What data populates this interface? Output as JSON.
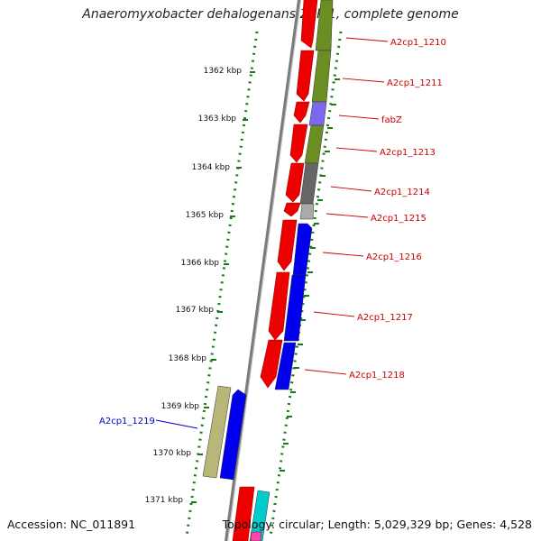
{
  "title": "Anaeromyxobacter dehalogenans 2CP-1, complete genome",
  "accession": "Accession: NC_011891",
  "topology": "Topology: circular; Length: 5,029,329 bp; Genes: 4,528",
  "colors": {
    "backbone": "#7a7a7a",
    "scale_dots": "#1a7a1a",
    "gene_label": "#cc0000",
    "highlight_label": "#0000cc",
    "forward_strand_gene": "#ee0000"
  },
  "scale_labels": [
    "1362 kbp",
    "1363 kbp",
    "1364 kbp",
    "1365 kbp",
    "1366 kbp",
    "1367 kbp",
    "1368 kbp",
    "1369 kbp",
    "1370 kbp",
    "1371 kbp"
  ],
  "genes": [
    {
      "label": "A2cp1_1210",
      "color": "#6b8e23"
    },
    {
      "label": "A2cp1_1211",
      "color": "#6b8e23"
    },
    {
      "label": "fabZ",
      "color": "#7b68ee"
    },
    {
      "label": "A2cp1_1213",
      "color": "#6b8e23"
    },
    {
      "label": "A2cp1_1214",
      "color": "#666666"
    },
    {
      "label": "A2cp1_1215",
      "color": "#aaaaaa"
    },
    {
      "label": "A2cp1_1216",
      "color": "#0000ee"
    },
    {
      "label": "A2cp1_1217",
      "color": "#0000ee"
    },
    {
      "label": "A2cp1_1218",
      "color": "#0000ee"
    },
    {
      "label": "A2cp1_1219",
      "color": "#b9b67a",
      "highlight": true
    }
  ]
}
